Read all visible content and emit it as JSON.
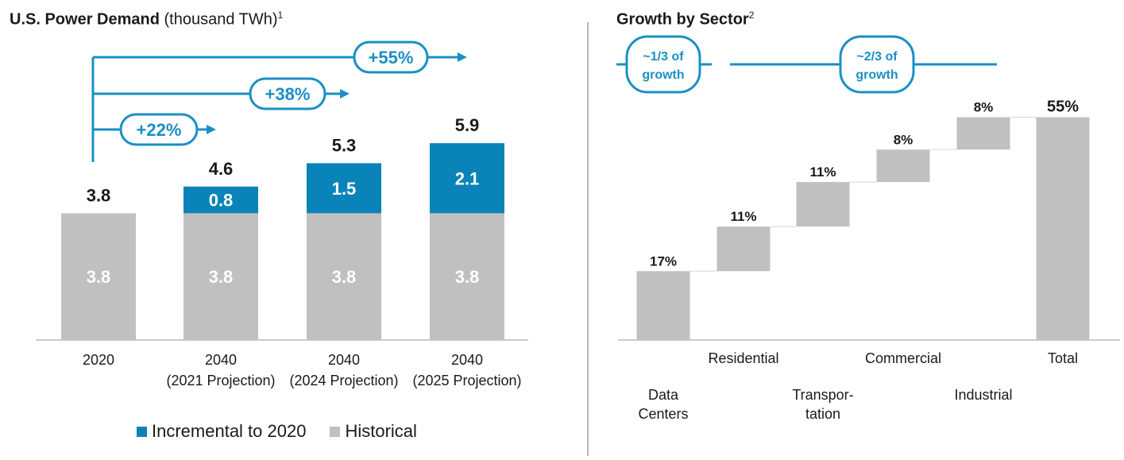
{
  "left_title": {
    "main": "U.S. Power Demand",
    "unit": "(thousand TWh)",
    "note": "1"
  },
  "right_title": {
    "main": "Growth by Sector",
    "note": "2"
  },
  "colors": {
    "incremental": "#0a84b8",
    "historical": "#c0c0c0",
    "arrow": "#1a8fc4",
    "pill_text": "#1a8fc4",
    "text": "#1a1a1a"
  },
  "legend": {
    "incremental": "Incremental to 2020",
    "historical": "Historical"
  },
  "growth_callouts": [
    "+55%",
    "+38%",
    "+22%"
  ],
  "share_callouts": [
    "~1/3 of growth",
    "~2/3 of growth"
  ],
  "chart_data": [
    {
      "type": "bar",
      "title": "U.S. Power Demand (thousand TWh)",
      "categories": [
        [
          "2020",
          ""
        ],
        [
          "2040",
          "(2021 Projection)"
        ],
        [
          "2040",
          "(2024 Projection)"
        ],
        [
          "2040",
          "(2025 Projection)"
        ]
      ],
      "series": [
        {
          "name": "Historical",
          "values": [
            3.8,
            3.8,
            3.8,
            3.8
          ]
        },
        {
          "name": "Incremental to 2020",
          "values": [
            0,
            0.8,
            1.5,
            2.1
          ]
        }
      ],
      "totals": [
        3.8,
        4.6,
        5.3,
        5.9
      ],
      "ylim": [
        0,
        6.6
      ],
      "stacked": true,
      "legend_position": "bottom"
    },
    {
      "type": "bar",
      "subtype": "waterfall",
      "title": "Growth by Sector",
      "categories": [
        [
          "Data",
          "Centers"
        ],
        [
          "Residential"
        ],
        [
          "Transpor-",
          "tation"
        ],
        [
          "Commercial"
        ],
        [
          "Industrial"
        ],
        [
          "Total"
        ]
      ],
      "values": [
        17,
        11,
        11,
        8,
        8,
        55
      ],
      "value_labels": [
        "17%",
        "11%",
        "11%",
        "8%",
        "8%",
        "55%"
      ],
      "ylim": [
        0,
        60
      ]
    }
  ]
}
